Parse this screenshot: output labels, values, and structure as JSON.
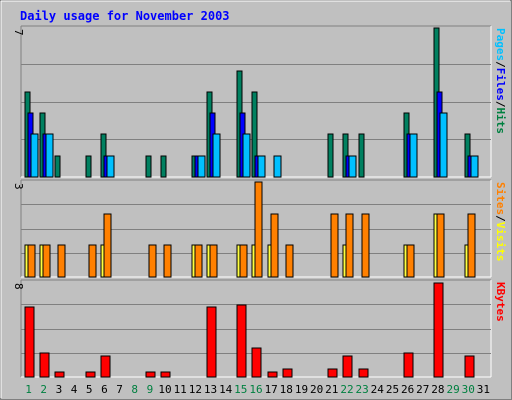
{
  "chart_data": {
    "type": "bar",
    "title": "Daily usage for November 2003",
    "categories": [
      "1",
      "2",
      "3",
      "4",
      "5",
      "6",
      "7",
      "8",
      "9",
      "10",
      "11",
      "12",
      "13",
      "14",
      "15",
      "16",
      "17",
      "18",
      "19",
      "20",
      "21",
      "22",
      "23",
      "24",
      "25",
      "26",
      "27",
      "28",
      "29",
      "30",
      "31"
    ],
    "weekend_days": [
      "1",
      "2",
      "8",
      "9",
      "15",
      "16",
      "22",
      "23",
      "29",
      "30"
    ],
    "panels": [
      {
        "id": "hits",
        "ymax_label": "7",
        "ymax": 7,
        "legend": [
          {
            "text": "Hits",
            "color": "#008040"
          },
          {
            "text": "/",
            "color": "#000000"
          },
          {
            "text": "Files",
            "color": "#0000ff"
          },
          {
            "text": "/",
            "color": "#000000"
          },
          {
            "text": "Pages",
            "color": "#00c0ff"
          }
        ],
        "series": [
          {
            "name": "Hits",
            "color": "#008060",
            "values": [
              4,
              3,
              1,
              0,
              1,
              2,
              0,
              0,
              1,
              1,
              0,
              1,
              4,
              0,
              5,
              4,
              0,
              0,
              0,
              0,
              2,
              2,
              2,
              0,
              0,
              3,
              0,
              7,
              0,
              2,
              0
            ]
          },
          {
            "name": "Files",
            "color": "#0000ff",
            "values": [
              3,
              2,
              0,
              0,
              0,
              1,
              0,
              0,
              0,
              0,
              0,
              1,
              3,
              0,
              3,
              1,
              0,
              0,
              0,
              0,
              0,
              1,
              0,
              0,
              0,
              2,
              0,
              4,
              0,
              1,
              0
            ]
          },
          {
            "name": "Pages",
            "color": "#00c0ff",
            "values": [
              2,
              2,
              0,
              0,
              0,
              1,
              0,
              0,
              0,
              0,
              0,
              1,
              2,
              0,
              2,
              1,
              1,
              0,
              0,
              0,
              0,
              1,
              0,
              0,
              0,
              2,
              0,
              3,
              0,
              1,
              0
            ]
          }
        ]
      },
      {
        "id": "visits",
        "ymax_label": "3",
        "ymax": 3,
        "legend": [
          {
            "text": "Visits",
            "color": "#ffff00"
          },
          {
            "text": "/",
            "color": "#000000"
          },
          {
            "text": "Sites",
            "color": "#ff8000"
          }
        ],
        "series": [
          {
            "name": "Visits",
            "color": "#ffff40",
            "values": [
              1,
              1,
              0,
              0,
              0,
              1,
              0,
              0,
              0,
              0,
              0,
              1,
              1,
              0,
              1,
              1,
              1,
              0,
              0,
              0,
              0,
              1,
              0,
              0,
              0,
              1,
              0,
              2,
              0,
              1,
              0
            ]
          },
          {
            "name": "Sites",
            "color": "#ff8000",
            "values": [
              1,
              1,
              1,
              0,
              1,
              2,
              0,
              0,
              1,
              1,
              0,
              1,
              1,
              0,
              1,
              3,
              2,
              1,
              0,
              0,
              2,
              2,
              2,
              0,
              0,
              1,
              0,
              2,
              0,
              2,
              0
            ]
          }
        ]
      },
      {
        "id": "kbytes",
        "ymax_label": "8",
        "ymax": 8,
        "legend": [
          {
            "text": "KBytes",
            "color": "#ff0000"
          }
        ],
        "series": [
          {
            "name": "KBytes",
            "color": "#ff0000",
            "values": [
              5.9,
              2.0,
              0.4,
              0,
              0.4,
              1.8,
              0,
              0,
              0.4,
              0.4,
              0,
              0,
              5.9,
              0,
              6.1,
              2.4,
              0.4,
              0.7,
              0,
              0,
              0.7,
              1.8,
              0.7,
              0,
              0,
              2.0,
              0,
              7.9,
              0,
              1.8,
              0
            ]
          }
        ]
      }
    ]
  },
  "colors": {
    "background": "#c0c0c0",
    "title": "#0000ff",
    "grid": "#808080",
    "weekday_label": "#000000",
    "weekend_label": "#008040"
  }
}
